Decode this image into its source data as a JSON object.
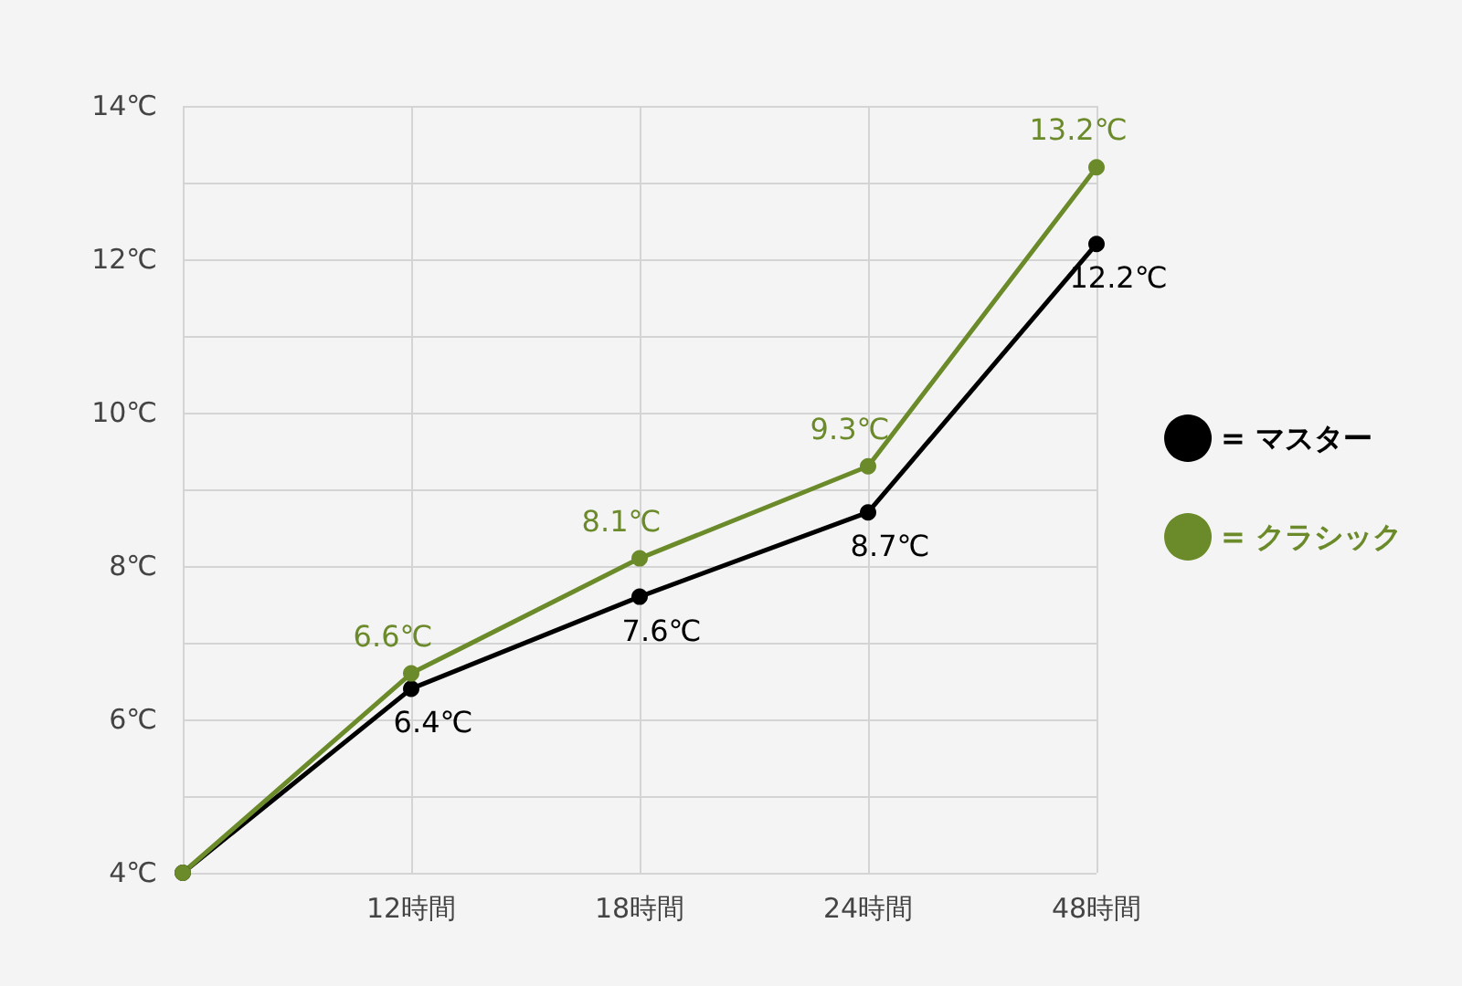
{
  "chart_data": {
    "type": "line",
    "categories": [
      null,
      "12時間",
      "18時間",
      "24時間",
      "48時間"
    ],
    "series": [
      {
        "name": "= マスター",
        "color": "#000000",
        "values": [
          4,
          6.4,
          7.6,
          8.7,
          12.2
        ],
        "value_labels": [
          null,
          "6.4℃",
          "7.6℃",
          "8.7℃",
          "12.2℃"
        ]
      },
      {
        "name": "= クラシック",
        "color": "#6b8a2a",
        "values": [
          4,
          6.6,
          8.1,
          9.3,
          13.2
        ],
        "value_labels": [
          null,
          "6.6℃",
          "8.1℃",
          "9.3℃",
          "13.2℃"
        ]
      }
    ],
    "ylim": [
      4,
      14
    ],
    "yticks": [
      {
        "value": 4,
        "label": "4℃"
      },
      {
        "value": 5,
        "label": null
      },
      {
        "value": 6,
        "label": "6℃"
      },
      {
        "value": 7,
        "label": null
      },
      {
        "value": 8,
        "label": "8℃"
      },
      {
        "value": 9,
        "label": null
      },
      {
        "value": 10,
        "label": "10℃"
      },
      {
        "value": 11,
        "label": null
      },
      {
        "value": 12,
        "label": "12℃"
      },
      {
        "value": 13,
        "label": null
      },
      {
        "value": 14,
        "label": "14℃"
      }
    ],
    "grid": true,
    "legend": "right",
    "marker": "circle",
    "line_style": "solid"
  }
}
